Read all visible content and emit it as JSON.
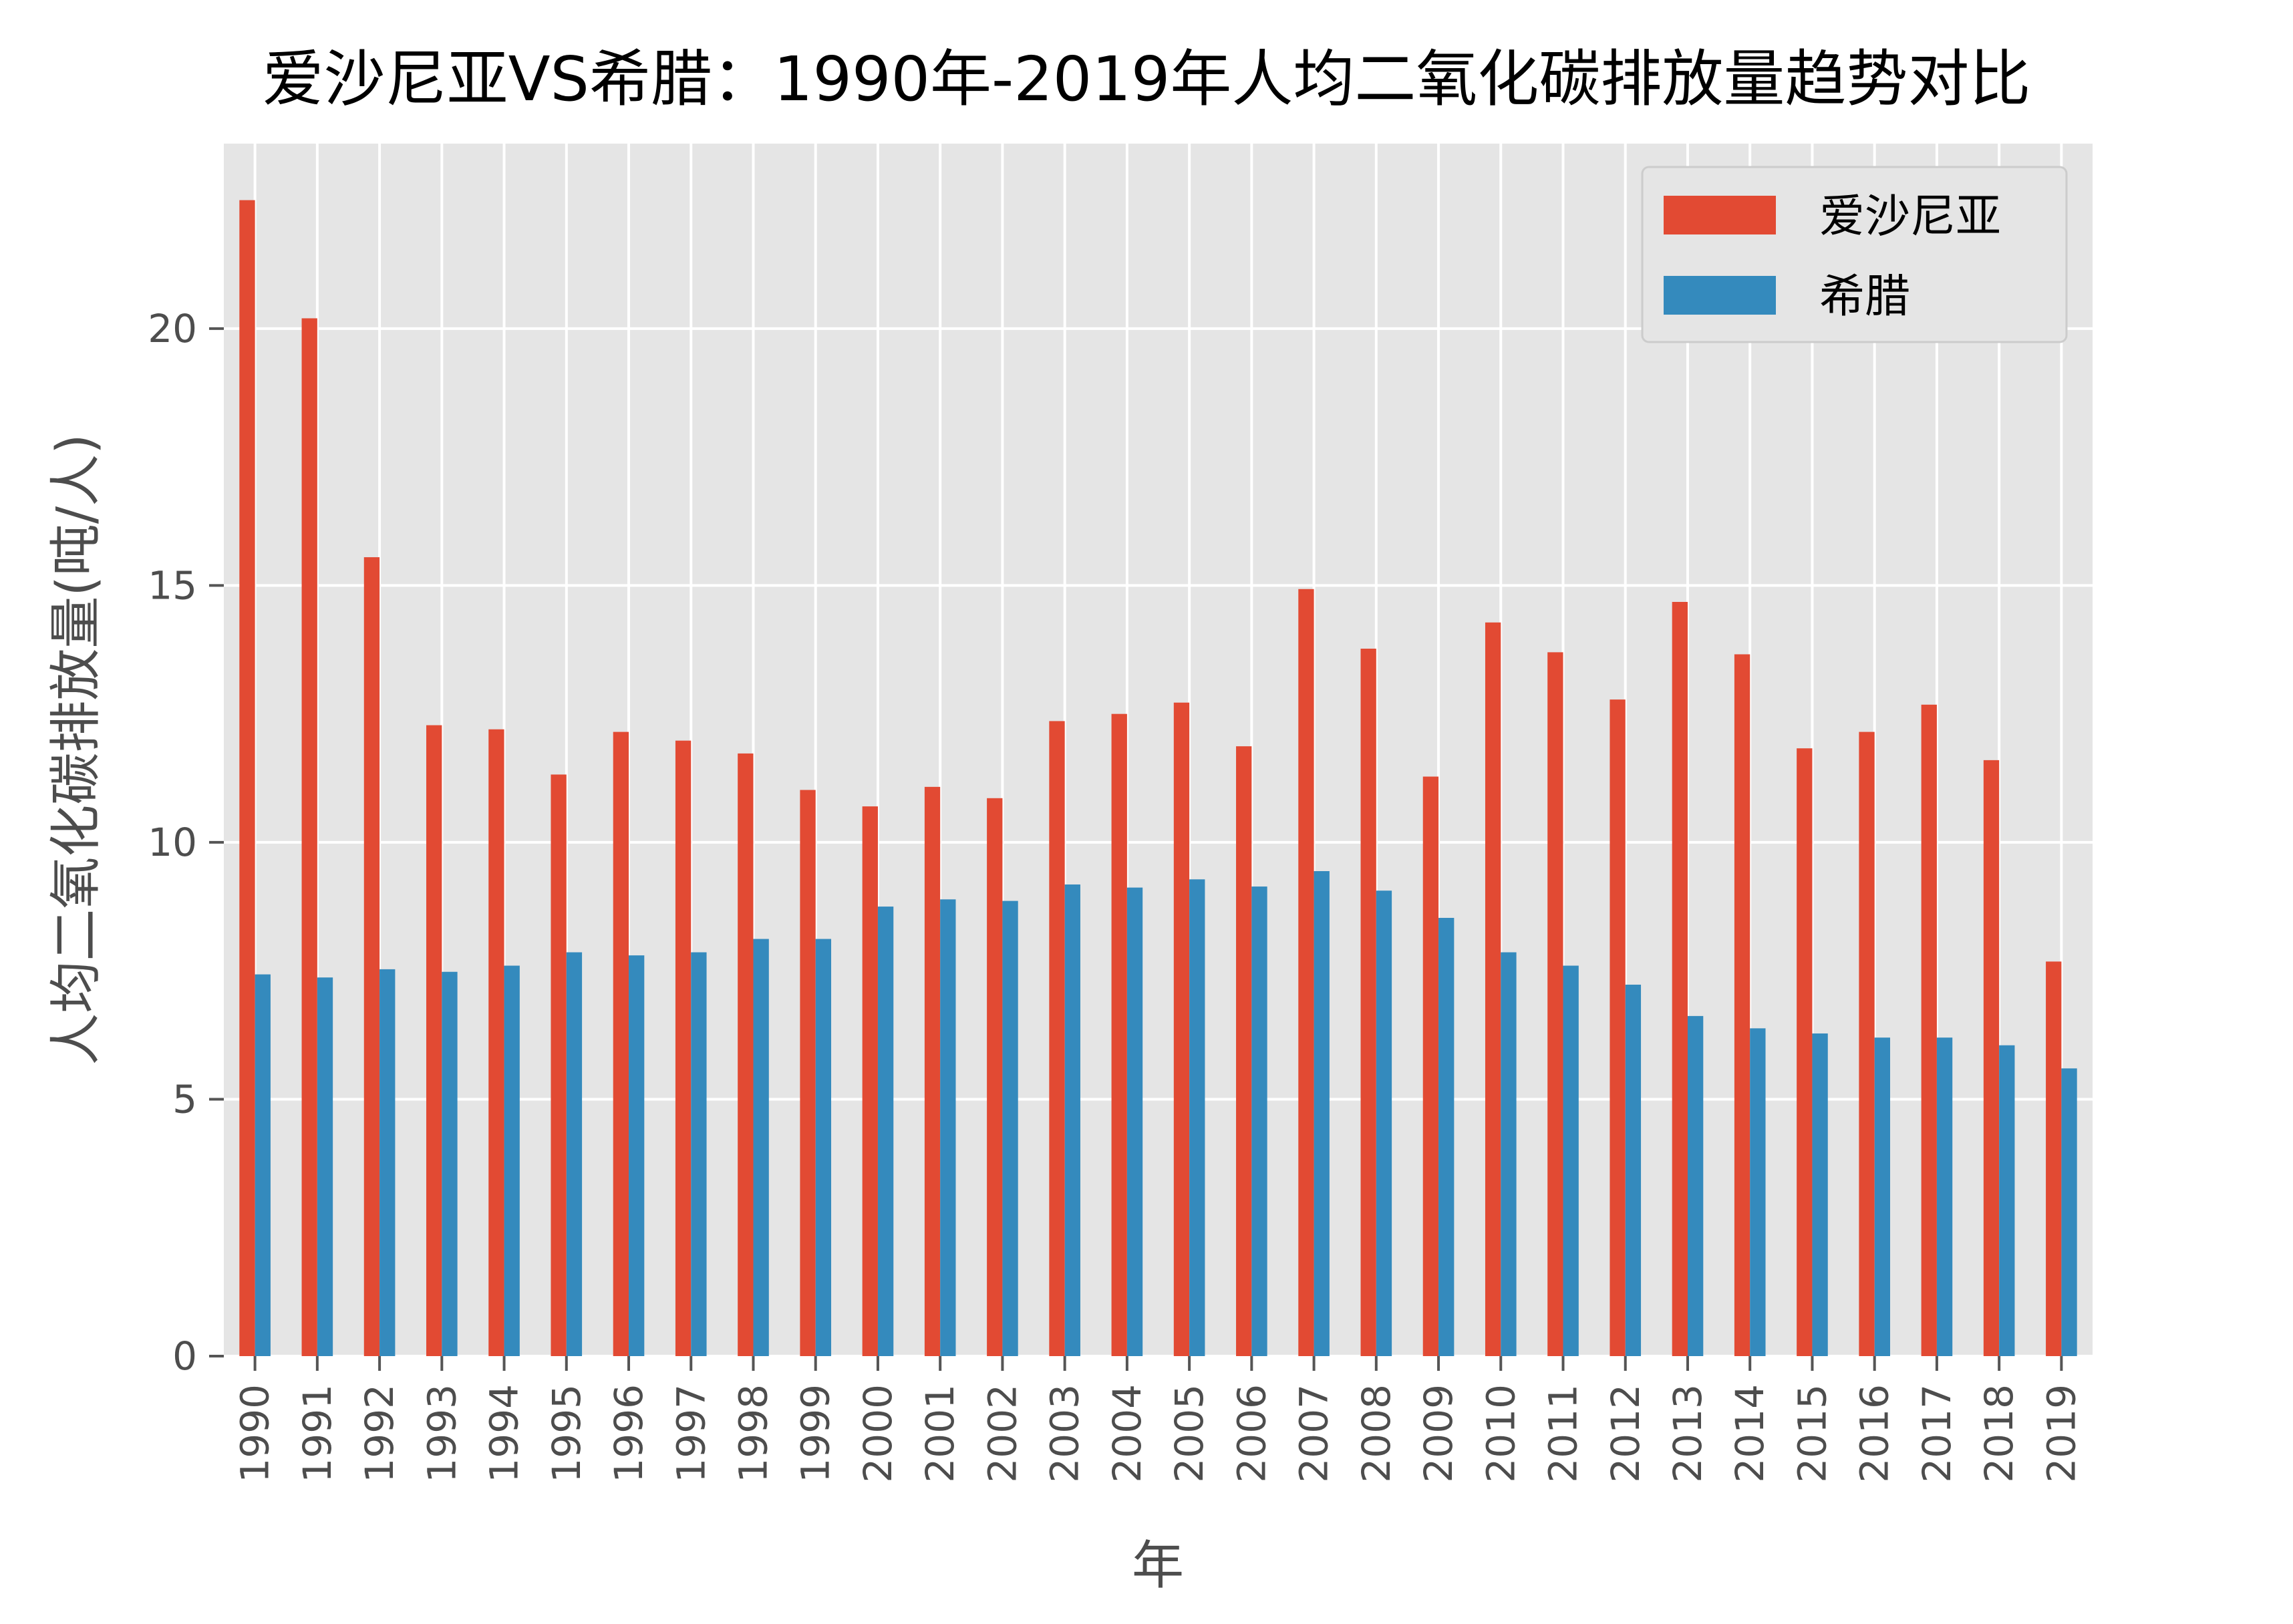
{
  "chart_data": {
    "type": "bar",
    "title": "爱沙尼亚VS希腊：1990年-2019年人均二氧化碳排放量趋势对比",
    "xlabel": "年",
    "ylabel": "人均二氧化碳排放量(吨/人)",
    "categories": [
      "1990",
      "1991",
      "1992",
      "1993",
      "1994",
      "1995",
      "1996",
      "1997",
      "1998",
      "1999",
      "2000",
      "2001",
      "2002",
      "2003",
      "2004",
      "2005",
      "2006",
      "2007",
      "2008",
      "2009",
      "2010",
      "2011",
      "2012",
      "2013",
      "2014",
      "2015",
      "2016",
      "2017",
      "2018",
      "2019"
    ],
    "series": [
      {
        "name": "爱沙尼亚",
        "color": "#E24A33",
        "values": [
          22.5,
          20.2,
          15.55,
          12.28,
          12.2,
          11.32,
          12.15,
          11.98,
          11.73,
          11.02,
          10.7,
          11.08,
          10.86,
          12.36,
          12.5,
          12.72,
          11.87,
          14.93,
          13.77,
          11.28,
          14.28,
          13.7,
          12.78,
          14.68,
          13.66,
          11.83,
          12.15,
          12.68,
          11.6,
          7.68
        ]
      },
      {
        "name": "希腊",
        "color": "#348ABD",
        "values": [
          7.43,
          7.37,
          7.53,
          7.48,
          7.6,
          7.86,
          7.8,
          7.86,
          8.12,
          8.12,
          8.75,
          8.89,
          8.86,
          9.18,
          9.12,
          9.28,
          9.14,
          9.44,
          9.06,
          8.53,
          7.86,
          7.6,
          7.23,
          6.62,
          6.38,
          6.28,
          6.2,
          6.2,
          6.05,
          5.6
        ]
      }
    ],
    "ylim": [
      0,
      23.6
    ],
    "yticks": [
      0,
      5,
      10,
      15,
      20
    ],
    "grid": true,
    "legend": "top-right",
    "background": "#E5E5E5"
  }
}
